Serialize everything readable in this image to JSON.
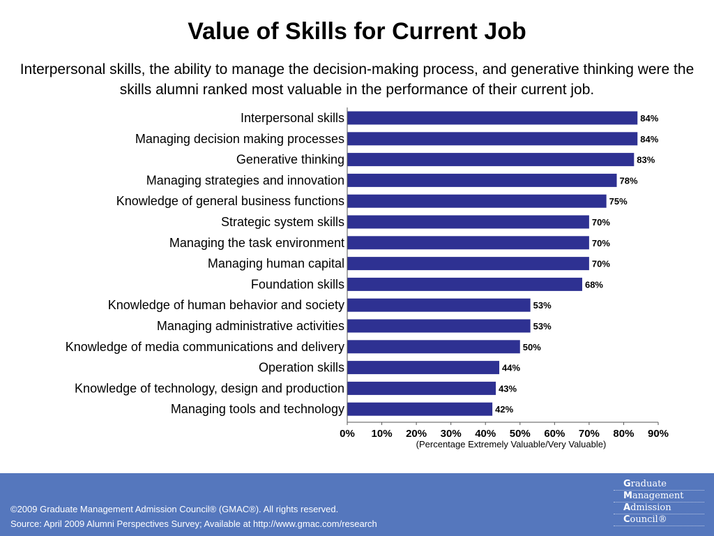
{
  "title": "Value of Skills for Current Job",
  "subtitle": "Interpersonal skills, the ability to manage the decision-making process, and generative thinking were the skills alumni ranked most valuable in the performance of their current job.",
  "chart_data": {
    "type": "bar",
    "orientation": "horizontal",
    "categories": [
      "Interpersonal skills",
      "Managing decision making processes",
      "Generative thinking",
      "Managing strategies and innovation",
      "Knowledge of general business functions",
      "Strategic system skills",
      "Managing the task environment",
      "Managing human capital",
      "Foundation skills",
      "Knowledge of human behavior and society",
      "Managing administrative activities",
      "Knowledge of media communications and delivery",
      "Operation skills",
      "Knowledge of technology, design and production",
      "Managing tools and technology"
    ],
    "values": [
      84,
      84,
      83,
      78,
      75,
      70,
      70,
      70,
      68,
      53,
      53,
      50,
      44,
      43,
      42
    ],
    "data_labels": [
      "84%",
      "84%",
      "83%",
      "78%",
      "75%",
      "70%",
      "70%",
      "70%",
      "68%",
      "53%",
      "53%",
      "50%",
      "44%",
      "43%",
      "42%"
    ],
    "xlim": [
      0,
      90
    ],
    "x_ticks": [
      "0%",
      "10%",
      "20%",
      "30%",
      "40%",
      "50%",
      "60%",
      "70%",
      "80%",
      "90%"
    ],
    "xlabel": "(Percentage Extremely Valuable/Very Valuable)",
    "bar_color": "#2e3192",
    "grid": false,
    "legend": "none"
  },
  "footer": {
    "copyright": "©2009 Graduate Management Admission Council® (GMAC®). All rights reserved.",
    "source": "Source: April 2009 Alumni Perspectives Survey; Available at http://www.gmac.com/research",
    "background_color": "#5577bd",
    "logo_lines": [
      {
        "initial": "G",
        "rest": "raduate"
      },
      {
        "initial": "M",
        "rest": "anagement"
      },
      {
        "initial": "A",
        "rest": "dmission"
      },
      {
        "initial": "C",
        "rest": "ouncil®"
      }
    ]
  }
}
